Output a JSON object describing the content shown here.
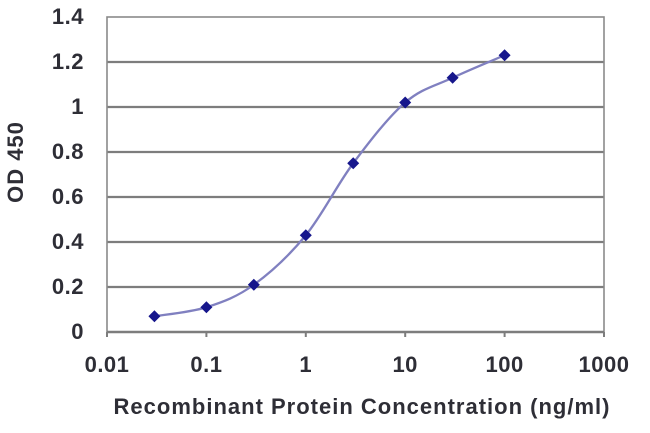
{
  "chart_data": {
    "type": "line",
    "title": "",
    "xlabel": "Recombinant Protein Concentration (ng/ml)",
    "ylabel": "OD 450",
    "x_scale": "log",
    "xlim": [
      0.01,
      1000
    ],
    "ylim": [
      0,
      1.4
    ],
    "x_ticks": [
      "0.01",
      "0.1",
      "1",
      "10",
      "100",
      "1000"
    ],
    "y_ticks": [
      "1.4",
      "1.2",
      "1",
      "0.8",
      "0.6",
      "0.4",
      "0.2",
      "0"
    ],
    "grid": "horizontal",
    "legend": "none",
    "series": [
      {
        "name": "OD 450",
        "marker": "diamond",
        "smooth": true,
        "x": [
          0.03,
          0.1,
          0.3,
          1,
          3,
          10,
          30,
          100
        ],
        "y": [
          0.07,
          0.11,
          0.21,
          0.43,
          0.75,
          1.02,
          1.13,
          1.23
        ]
      }
    ]
  },
  "colors": {
    "background": "#ffffff",
    "grid": "#7d7d7d",
    "plot_border": "#8a8a8a",
    "axis_text": "#2e2e36",
    "line": "#8080c0",
    "marker": "#17178c"
  }
}
